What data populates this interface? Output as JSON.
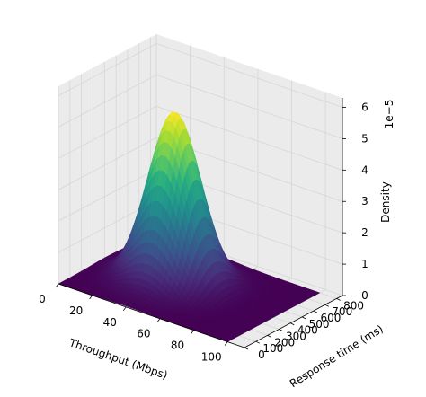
{
  "chart_data": {
    "type": "surface",
    "xlabel": "Throughput (Mbps)",
    "ylabel": "Response time (ms)",
    "zlabel": "Density",
    "z_offset_label": "1e−5",
    "xlim": [
      0,
      110
    ],
    "ylim": [
      0,
      850
    ],
    "zlim": [
      0,
      6.3
    ],
    "x_ticks": [
      0,
      20,
      40,
      60,
      80,
      100
    ],
    "y_ticks": [
      0,
      100,
      200,
      300,
      400,
      500,
      600,
      700,
      800
    ],
    "z_ticks": [
      0,
      1,
      2,
      3,
      4,
      5,
      6
    ],
    "z_scale": 1e-05,
    "peak": {
      "x": 40,
      "y": 420,
      "density": 5.4
    },
    "spread": {
      "x_sd": 13,
      "y_sd": 130
    },
    "colormap": "viridis",
    "grid": true,
    "pane_color": "#ebebeb",
    "grid_color": "#d6d6d6"
  }
}
